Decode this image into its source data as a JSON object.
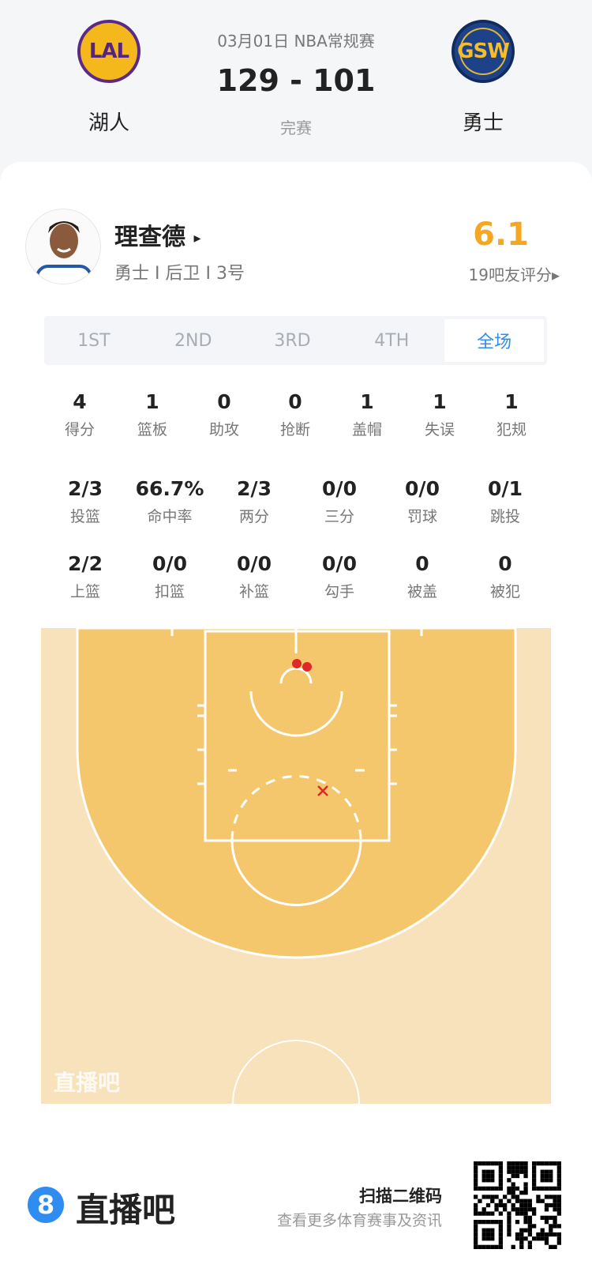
{
  "match": {
    "date_league": "03月01日 NBA常规赛",
    "score": "129 - 101",
    "status": "完赛",
    "home": {
      "name": "湖人",
      "logo_text": "LAL",
      "color": "#5a2a86"
    },
    "away": {
      "name": "勇士",
      "logo_text": "GSW",
      "color": "#1d428a"
    }
  },
  "player": {
    "name": "理查德",
    "arrow": "▸",
    "info": "勇士 I 后卫 I 3号",
    "rating": "6.1",
    "rating_color": "#f5a623",
    "rating_label": "19吧友评分▸"
  },
  "tabs": [
    {
      "label": "1ST"
    },
    {
      "label": "2ND"
    },
    {
      "label": "3RD"
    },
    {
      "label": "4TH"
    },
    {
      "label": "全场",
      "active": true
    }
  ],
  "stats_row1": [
    {
      "v": "4",
      "l": "得分"
    },
    {
      "v": "1",
      "l": "篮板"
    },
    {
      "v": "0",
      "l": "助攻"
    },
    {
      "v": "0",
      "l": "抢断"
    },
    {
      "v": "1",
      "l": "盖帽"
    },
    {
      "v": "1",
      "l": "失误"
    },
    {
      "v": "1",
      "l": "犯规"
    }
  ],
  "stats_row2": [
    {
      "v": "2/3",
      "l": "投篮"
    },
    {
      "v": "66.7%",
      "l": "命中率"
    },
    {
      "v": "2/3",
      "l": "两分"
    },
    {
      "v": "0/0",
      "l": "三分"
    },
    {
      "v": "0/0",
      "l": "罚球"
    },
    {
      "v": "0/1",
      "l": "跳投"
    }
  ],
  "stats_row3": [
    {
      "v": "2/2",
      "l": "上篮"
    },
    {
      "v": "0/0",
      "l": "扣篮"
    },
    {
      "v": "0/0",
      "l": "补篮"
    },
    {
      "v": "0/0",
      "l": "勾手"
    },
    {
      "v": "0",
      "l": "被盖"
    },
    {
      "v": "0",
      "l": "被犯"
    }
  ],
  "shot_chart": {
    "watermark": "直播吧",
    "made_color": "#e02828",
    "miss_color": "#e02828",
    "shots": [
      {
        "result": "made"
      },
      {
        "result": "made"
      },
      {
        "result": "miss"
      }
    ]
  },
  "footer": {
    "logo_digit": "8",
    "brand": "直播吧",
    "scan_title": "扫描二维码",
    "scan_sub": "查看更多体育赛事及资讯",
    "brand_color": "#2f8cf0"
  }
}
